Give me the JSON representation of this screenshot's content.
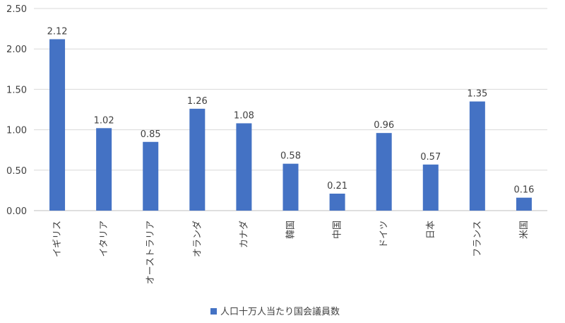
{
  "chart_data": {
    "type": "bar",
    "categories": [
      "イギリス",
      "イタリア",
      "オーストラリア",
      "オランダ",
      "カナダ",
      "韓国",
      "中国",
      "ドイツ",
      "日本",
      "フランス",
      "米国"
    ],
    "series": [
      {
        "name": "人口十万人当たり国会議員数",
        "values": [
          2.12,
          1.02,
          0.85,
          1.26,
          1.08,
          0.58,
          0.21,
          0.96,
          0.57,
          1.35,
          0.16
        ],
        "color": "#4472c4"
      }
    ],
    "ylim": [
      0,
      2.5
    ],
    "yticks": [
      "0.00",
      "0.50",
      "1.00",
      "1.50",
      "2.00",
      "2.50"
    ],
    "grid": true,
    "legend_position": "bottom",
    "data_labels": true
  }
}
